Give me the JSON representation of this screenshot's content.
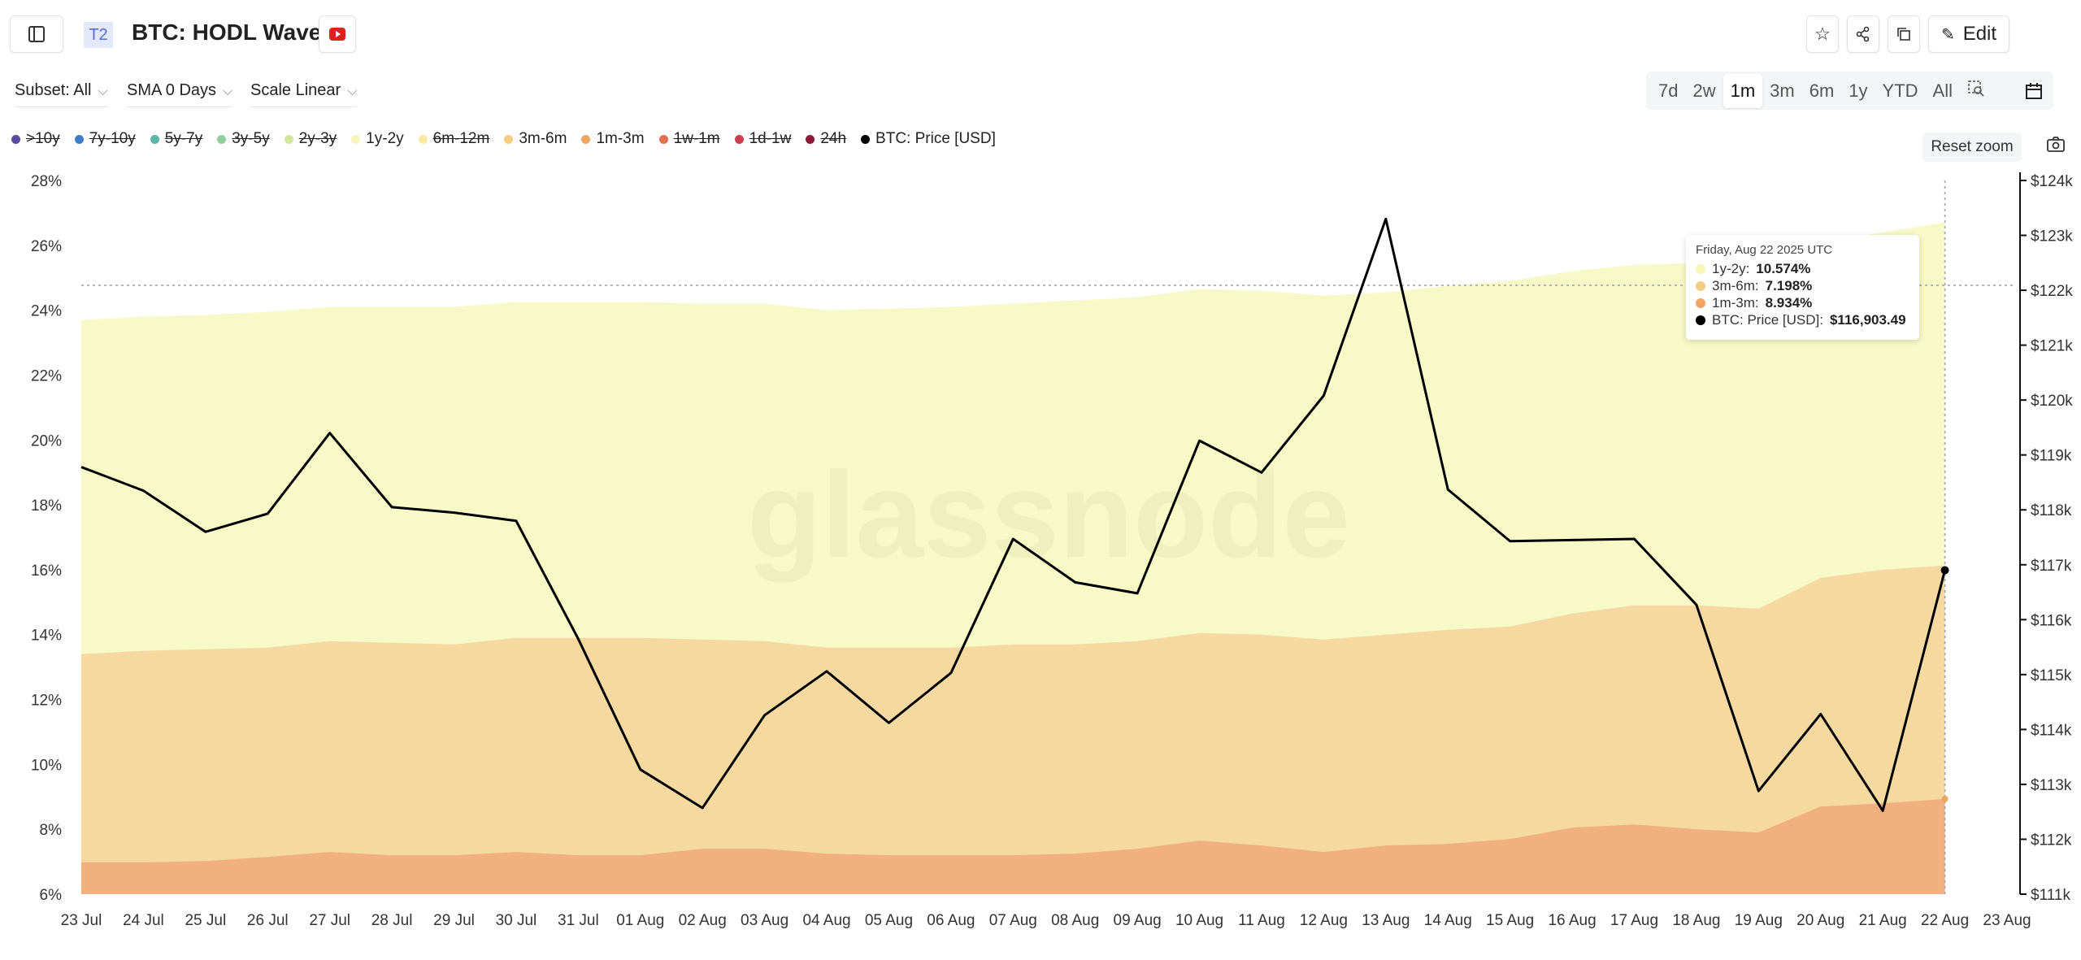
{
  "header": {
    "badge": "T2",
    "title": "BTC: HODL Waves",
    "edit_label": "Edit"
  },
  "controls": {
    "subset": "Subset: All",
    "sma": "SMA 0 Days",
    "scale": "Scale Linear",
    "ranges": [
      "7d",
      "2w",
      "1m",
      "3m",
      "6m",
      "1y",
      "YTD",
      "All"
    ],
    "active_range": "1m",
    "reset_zoom": "Reset zoom"
  },
  "legend": [
    {
      "label": ">10y",
      "color": "#5b4a9f",
      "off": true
    },
    {
      "label": "7y-10y",
      "color": "#3d7cc9",
      "off": true
    },
    {
      "label": "5y-7y",
      "color": "#5bb5a8",
      "off": true
    },
    {
      "label": "3y-5y",
      "color": "#93cf9c",
      "off": true
    },
    {
      "label": "2y-3y",
      "color": "#d2e99c",
      "off": true
    },
    {
      "label": "1y-2y",
      "color": "#f6f6b9",
      "off": false
    },
    {
      "label": "6m-12m",
      "color": "#f9eaa2",
      "off": true
    },
    {
      "label": "3m-6m",
      "color": "#f5cd82",
      "off": false
    },
    {
      "label": "1m-3m",
      "color": "#f0a463",
      "off": false
    },
    {
      "label": "1w-1m",
      "color": "#e07152",
      "off": true
    },
    {
      "label": "1d-1w",
      "color": "#c9434f",
      "off": true
    },
    {
      "label": "24h",
      "color": "#8e1838",
      "off": true
    },
    {
      "label": "BTC: Price [USD]",
      "color": "#000000",
      "off": false
    }
  ],
  "tooltip": {
    "date": "Friday, Aug 22 2025 UTC",
    "rows": [
      {
        "label": "1y-2y: ",
        "value": "10.574%",
        "color": "#f6f6b9"
      },
      {
        "label": "3m-6m: ",
        "value": "7.198%",
        "color": "#f5cd82"
      },
      {
        "label": "1m-3m: ",
        "value": "8.934%",
        "color": "#f0a463"
      },
      {
        "label": "BTC: Price [USD]: ",
        "value": "$116,903.49",
        "color": "#000000"
      }
    ]
  },
  "watermark": "glassnode",
  "chart_data": {
    "type": "area",
    "title": "BTC: HODL Waves",
    "x": [
      "23 Jul",
      "24 Jul",
      "25 Jul",
      "26 Jul",
      "27 Jul",
      "28 Jul",
      "29 Jul",
      "30 Jul",
      "31 Jul",
      "01 Aug",
      "02 Aug",
      "03 Aug",
      "04 Aug",
      "05 Aug",
      "06 Aug",
      "07 Aug",
      "08 Aug",
      "09 Aug",
      "10 Aug",
      "11 Aug",
      "12 Aug",
      "13 Aug",
      "14 Aug",
      "15 Aug",
      "16 Aug",
      "17 Aug",
      "18 Aug",
      "19 Aug",
      "20 Aug",
      "21 Aug",
      "22 Aug"
    ],
    "x_ticks": [
      "23 Jul",
      "24 Jul",
      "25 Jul",
      "26 Jul",
      "27 Jul",
      "28 Jul",
      "29 Jul",
      "30 Jul",
      "31 Jul",
      "01 Aug",
      "02 Aug",
      "03 Aug",
      "04 Aug",
      "05 Aug",
      "06 Aug",
      "07 Aug",
      "08 Aug",
      "09 Aug",
      "10 Aug",
      "11 Aug",
      "12 Aug",
      "13 Aug",
      "14 Aug",
      "15 Aug",
      "16 Aug",
      "17 Aug",
      "18 Aug",
      "19 Aug",
      "20 Aug",
      "21 Aug",
      "22 Aug",
      "23 Aug"
    ],
    "stacked_cumulative_tops": [
      {
        "name": "1m-3m",
        "color": "#f0b07f",
        "values": [
          6.98,
          6.98,
          7.02,
          7.15,
          7.3,
          7.2,
          7.2,
          7.3,
          7.2,
          7.2,
          7.4,
          7.4,
          7.25,
          7.2,
          7.2,
          7.2,
          7.25,
          7.4,
          7.65,
          7.5,
          7.3,
          7.5,
          7.55,
          7.7,
          8.05,
          8.15,
          8.0,
          7.9,
          8.7,
          8.8,
          8.934
        ]
      },
      {
        "name": "3m-6m",
        "color": "#f6d9a1",
        "values": [
          13.4,
          13.5,
          13.55,
          13.6,
          13.8,
          13.75,
          13.7,
          13.9,
          13.9,
          13.9,
          13.85,
          13.8,
          13.6,
          13.6,
          13.6,
          13.7,
          13.7,
          13.8,
          14.05,
          14.0,
          13.85,
          14.0,
          14.15,
          14.25,
          14.65,
          14.9,
          14.9,
          14.8,
          15.75,
          16.0,
          16.13
        ]
      },
      {
        "name": "1y-2y",
        "color": "#f7f9c6",
        "values": [
          23.7,
          23.8,
          23.85,
          23.95,
          24.1,
          24.1,
          24.1,
          24.25,
          24.25,
          24.25,
          24.2,
          24.2,
          24.0,
          24.05,
          24.1,
          24.2,
          24.3,
          24.4,
          24.65,
          24.6,
          24.45,
          24.55,
          24.75,
          24.9,
          25.2,
          25.4,
          25.45,
          25.5,
          26.1,
          26.4,
          26.71
        ]
      }
    ],
    "price_series": {
      "name": "BTC: Price [USD]",
      "unit": "k USD",
      "values": [
        118.78,
        118.35,
        117.6,
        117.93,
        119.4,
        118.05,
        117.95,
        117.8,
        115.65,
        113.27,
        112.57,
        114.26,
        115.06,
        114.12,
        115.03,
        117.47,
        116.68,
        116.48,
        119.26,
        118.68,
        120.08,
        123.3,
        118.37,
        117.43,
        117.45,
        117.47,
        116.27,
        112.88,
        114.28,
        112.52,
        116.9
      ]
    },
    "ylim_left": [
      6,
      28
    ],
    "yticks_left": [
      "6%",
      "8%",
      "10%",
      "12%",
      "14%",
      "16%",
      "18%",
      "20%",
      "22%",
      "24%",
      "26%",
      "28%"
    ],
    "ylim_right": [
      111,
      124
    ],
    "yticks_right": [
      "$111k",
      "$112k",
      "$113k",
      "$114k",
      "$115k",
      "$116k",
      "$117k",
      "$118k",
      "$119k",
      "$120k",
      "$121k",
      "$122k",
      "$123k",
      "$124k"
    ],
    "grid": false
  }
}
